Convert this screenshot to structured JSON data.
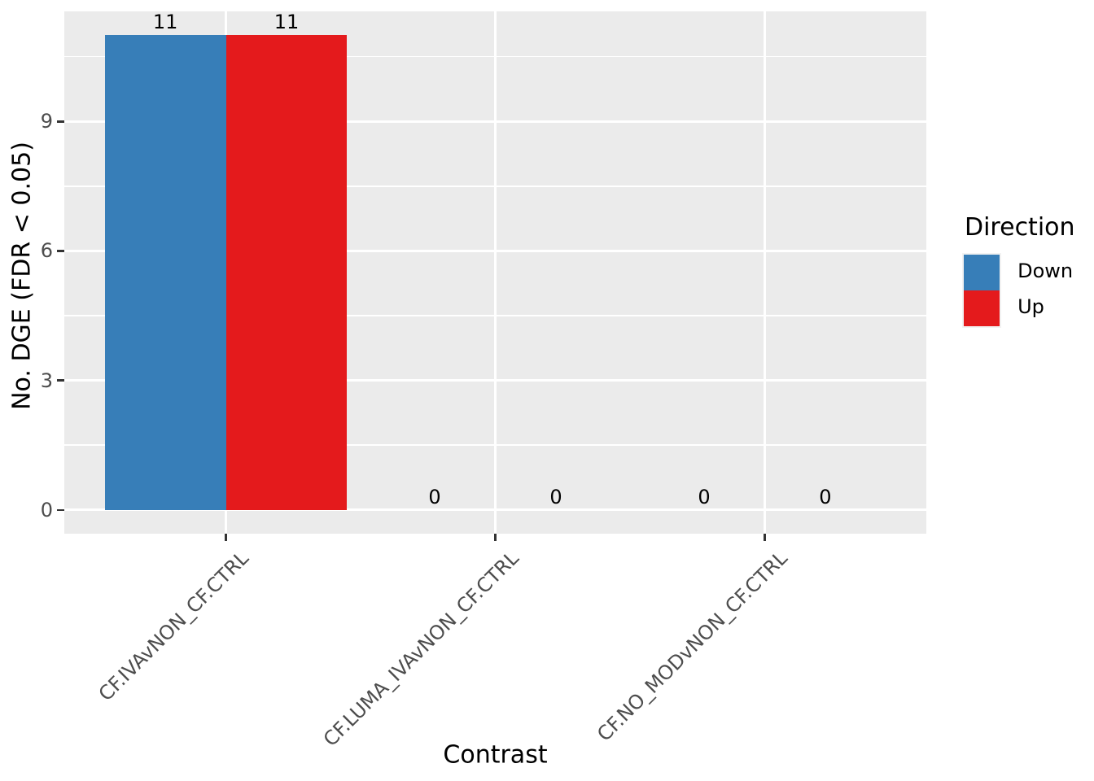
{
  "chart_data": {
    "type": "bar",
    "title": "",
    "xlabel": "Contrast",
    "ylabel": "No. DGE (FDR < 0.05)",
    "categories": [
      "CF.IVAvNON_CF.CTRL",
      "CF.LUMA_IVAvNON_CF.CTRL",
      "CF.NO_MODvNON_CF.CTRL"
    ],
    "series": [
      {
        "name": "Down",
        "color": "#377EB8",
        "values": [
          11,
          0,
          0
        ]
      },
      {
        "name": "Up",
        "color": "#E41A1C",
        "values": [
          11,
          0,
          0
        ]
      }
    ],
    "bar_value_labels": [
      [
        11,
        11
      ],
      [
        0,
        0
      ],
      [
        0,
        0
      ]
    ],
    "yticks": [
      0,
      3,
      6,
      9
    ],
    "ylim": [
      -0.55,
      11.55
    ],
    "grid": {
      "horizontal_major": true,
      "horizontal_minor": true,
      "vertical_major": true
    },
    "legend": {
      "title": "Direction",
      "position": "right",
      "entries": [
        "Down",
        "Up"
      ]
    },
    "colors": {
      "panel_background": "#EBEBEB",
      "gridline": "#FFFFFF",
      "axis_text": "#4D4D4D",
      "axis_title": "#000000",
      "down": "#377EB8",
      "up": "#E41A1C"
    }
  }
}
